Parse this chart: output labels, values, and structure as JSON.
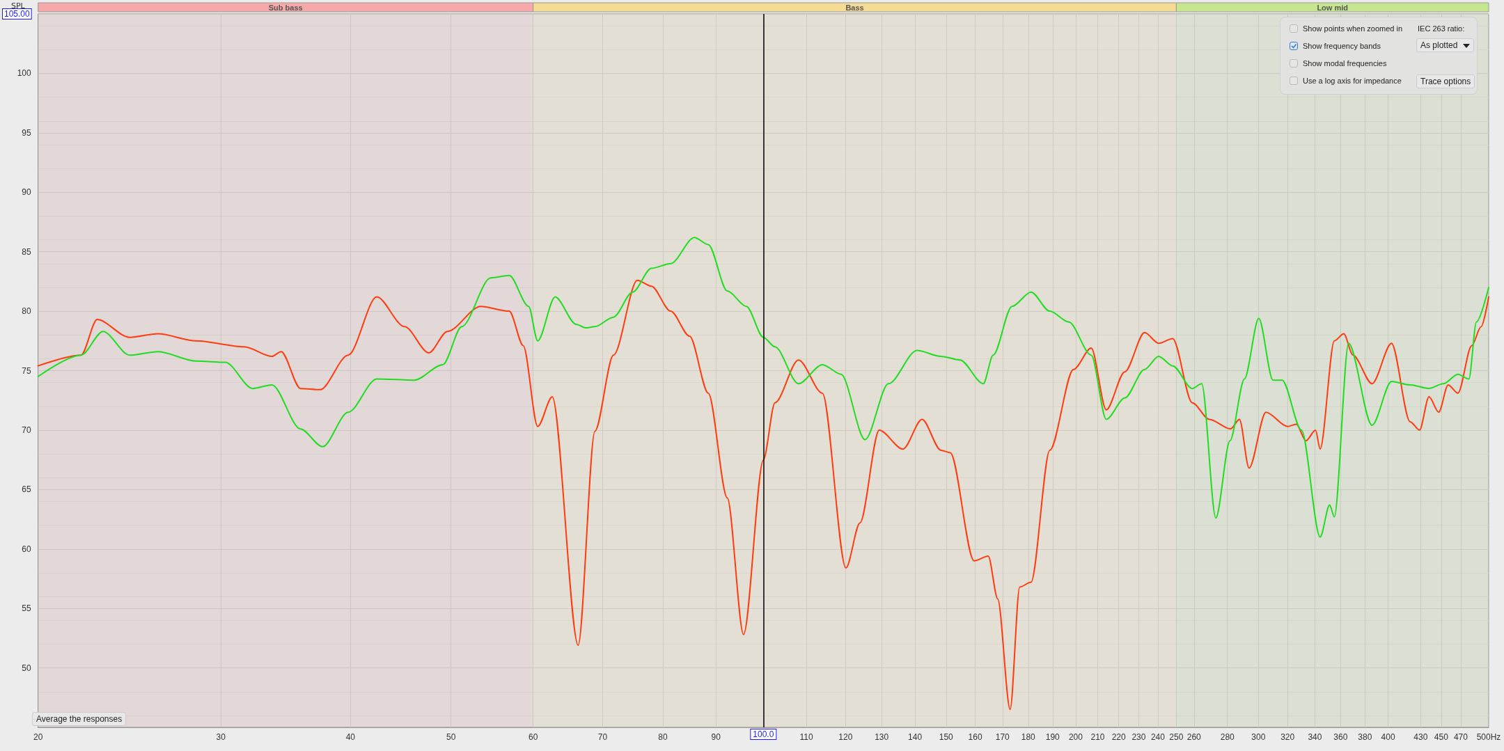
{
  "chart_data": {
    "type": "line",
    "ylabel": "SPL",
    "log": "x",
    "grid": true,
    "marker": "none",
    "line_style": "solid",
    "xlim": [
      20,
      500
    ],
    "xticks": [
      20,
      30,
      40,
      50,
      60,
      70,
      80,
      90,
      {
        "value": 100,
        "label": null
      },
      110,
      120,
      130,
      140,
      150,
      160,
      170,
      180,
      190,
      200,
      210,
      220,
      230,
      240,
      250,
      260,
      280,
      300,
      320,
      340,
      360,
      380,
      400,
      430,
      450,
      470,
      {
        "value": 500,
        "label": "500Hz"
      }
    ],
    "ylim": [
      45,
      105
    ],
    "yticks": [
      50,
      55,
      60,
      65,
      70,
      75,
      80,
      85,
      90,
      95,
      100,
      {
        "value": 105,
        "label": "105.00"
      }
    ],
    "bands": [
      {
        "axis": "x",
        "from": 20,
        "to": 60,
        "label": "Sub bass",
        "color": "#f7a8a8"
      },
      {
        "axis": "x",
        "from": 60,
        "to": 250,
        "label": "Bass",
        "color": "#f5dc94"
      },
      {
        "axis": "x",
        "from": 250,
        "to": 500,
        "label": "Low mid",
        "color": "#c6e690"
      }
    ],
    "ref_lines": [
      {
        "axis": "x",
        "value": 100,
        "label": "100.0",
        "color": "#000000"
      }
    ],
    "annotations": [
      "Show points when zoomed in",
      "Show frequency bands",
      "Show modal frequencies",
      "Use a log axis for impedance",
      "IEC 263 ratio:",
      "As plotted",
      "Trace options",
      "Average the responses"
    ],
    "series": [
      {
        "color": "#ff3c10",
        "x": [
          20,
          22.0,
          22.8,
          24.5,
          26.1,
          28.4,
          31.6,
          33.6,
          34.3,
          35.8,
          37.4,
          39.8,
          42.4,
          45.1,
          47.6,
          49.6,
          53.4,
          56.9,
          58.7,
          60.6,
          62.6,
          66.3,
          68.8,
          71.7,
          75.6,
          78.0,
          81.4,
          84.9,
          88.5,
          92.3,
          95.7,
          100,
          102.6,
          108.1,
          114,
          120.1,
          123.9,
          129.3,
          136.3,
          142.2,
          148.3,
          151.4,
          159.6,
          164.7,
          168.2,
          172.9,
          176.6,
          181.1,
          188.8,
          199,
          207,
          214,
          223,
          233,
          240.4,
          248,
          259,
          269,
          282,
          287.6,
          293.8,
          305,
          320,
          326.3,
          333.3,
          340.5,
          344,
          355,
          362.5,
          370,
          386,
          403,
          420,
          428.9,
          438,
          447.5,
          457,
          467,
          481.5,
          491.7,
          500
        ],
        "values": [
          75.4,
          76.3,
          79.3,
          77.8,
          78.1,
          77.5,
          77.0,
          76.2,
          76.6,
          73.5,
          73.4,
          76.3,
          81.2,
          78.7,
          76.5,
          78.3,
          80.4,
          80.0,
          77.1,
          70.3,
          72.8,
          51.9,
          69.9,
          76.3,
          82.6,
          82.1,
          80.0,
          77.9,
          73.1,
          64.3,
          52.8,
          67.5,
          72.3,
          75.9,
          73.1,
          58.4,
          62.2,
          70.0,
          68.4,
          70.9,
          68.3,
          68.1,
          59.0,
          59.4,
          55.8,
          46.5,
          56.8,
          57.2,
          68.3,
          75.1,
          76.9,
          71.7,
          74.9,
          78.2,
          77.3,
          77.7,
          72.3,
          70.9,
          70.1,
          70.9,
          66.8,
          71.5,
          70.3,
          70.5,
          69.1,
          70.0,
          68.4,
          77.5,
          78.1,
          76.3,
          73.9,
          77.3,
          70.7,
          70.0,
          72.8,
          71.5,
          73.8,
          73.1,
          77.1,
          78.7,
          81.2
        ]
      },
      {
        "color": "#22dc22",
        "x": [
          20,
          22.0,
          23.1,
          24.5,
          26.1,
          28.4,
          30.3,
          32.2,
          33.6,
          35.8,
          37.6,
          39.8,
          42.4,
          46.1,
          49.1,
          51.2,
          54.6,
          56.9,
          59.4,
          60.6,
          63.0,
          66.0,
          67.4,
          68.8,
          71.7,
          74.8,
          78.0,
          81.4,
          85.8,
          88.5,
          92.3,
          96.3,
          100,
          102.6,
          108.1,
          114,
          118.8,
          125.3,
          132,
          140.6,
          148.3,
          154.7,
          162.9,
          166.5,
          173.6,
          181.1,
          188.8,
          196.9,
          207,
          214,
          223,
          233,
          240.4,
          248,
          259,
          264.5,
          272.9,
          281.6,
          290.8,
          300.2,
          309.8,
          316.2,
          330,
          344,
          351.3,
          355,
          366.4,
          386,
          403,
          420,
          438,
          452.2,
          467,
          478.5,
          486.6,
          500
        ],
        "values": [
          74.5,
          76.3,
          78.3,
          76.3,
          76.6,
          75.8,
          75.7,
          73.5,
          73.8,
          70.1,
          68.6,
          71.5,
          74.3,
          74.2,
          75.5,
          78.7,
          82.8,
          83.0,
          80.4,
          77.5,
          81.2,
          78.9,
          78.6,
          78.7,
          79.5,
          81.6,
          83.6,
          84.0,
          86.2,
          85.6,
          81.7,
          80.4,
          77.8,
          77.0,
          73.9,
          75.5,
          74.7,
          69.2,
          73.9,
          76.7,
          76.2,
          75.9,
          73.9,
          76.3,
          80.4,
          81.6,
          80.0,
          79.1,
          76.3,
          70.9,
          72.7,
          75.1,
          76.2,
          75.4,
          73.5,
          73.9,
          62.6,
          69.1,
          74.3,
          79.4,
          74.2,
          74.2,
          70.0,
          61.0,
          63.7,
          62.7,
          77.3,
          70.4,
          74.1,
          73.8,
          73.5,
          73.9,
          74.7,
          74.3,
          79.1,
          82.0
        ]
      }
    ]
  }
}
